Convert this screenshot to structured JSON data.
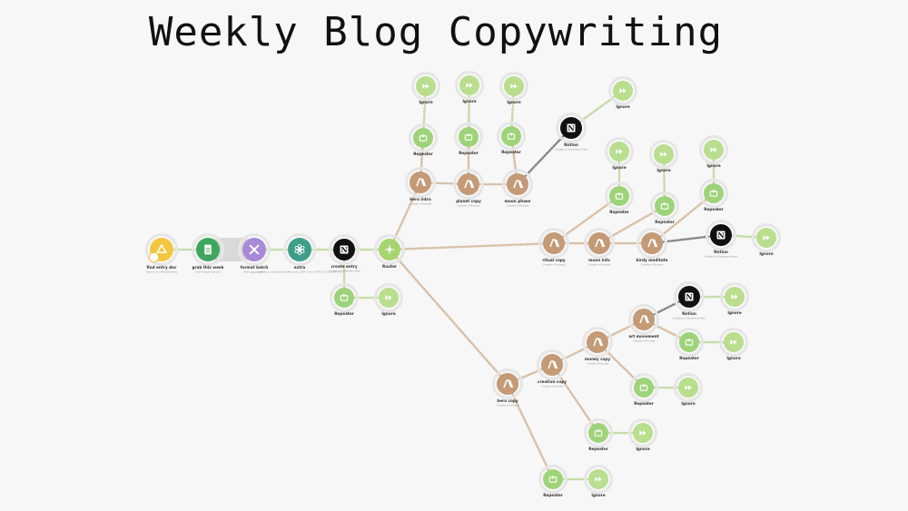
{
  "title": "Weekly Blog Copywriting",
  "colors": {
    "drive": "#f3c640",
    "sheets": "#3ea65d",
    "tools": "#a88ad8",
    "openai": "#3d9e8a",
    "notion": "#111111",
    "router": "#a8d46f",
    "claude": "#c49a77",
    "repeater": "#9fd37a",
    "ignore": "#b9de8e",
    "halo": "#e6e6e6",
    "dotted_link": "#c7dca8"
  },
  "nodes": [
    {
      "id": "find-entry",
      "label": "find entry doc",
      "sub": "Search for Files/Folders",
      "type": "drive"
    },
    {
      "id": "grab-week",
      "label": "grab this week",
      "sub": "Get Range Values",
      "type": "sheets"
    },
    {
      "id": "format-batch",
      "label": "format batch",
      "sub": "Text aggregator",
      "type": "tools"
    },
    {
      "id": "extra",
      "label": "extra",
      "sub": "Create a completion (Prompt) (GPT-3 and GPT-3.5 and GPT-4)",
      "type": "openai"
    },
    {
      "id": "create-entry",
      "label": "create entry",
      "sub": "Create a Database Item",
      "type": "notion"
    },
    {
      "id": "router",
      "label": "Router",
      "sub": "",
      "type": "router"
    },
    {
      "id": "repeater-a",
      "label": "Repeater",
      "sub": "",
      "type": "repeater"
    },
    {
      "id": "ignore-a",
      "label": "Ignore",
      "sub": "",
      "type": "ignore"
    },
    {
      "id": "hero-intro",
      "label": "hero intro",
      "sub": "Create a Prompt",
      "type": "claude"
    },
    {
      "id": "planet-copy",
      "label": "planet copy",
      "sub": "Create a Prompt",
      "type": "claude"
    },
    {
      "id": "moon-phase",
      "label": "moon phase",
      "sub": "Create a Prompt",
      "type": "claude"
    },
    {
      "id": "repeater-b1",
      "label": "Repeater",
      "sub": "",
      "type": "repeater"
    },
    {
      "id": "repeater-b2",
      "label": "Repeater",
      "sub": "",
      "type": "repeater"
    },
    {
      "id": "repeater-b3",
      "label": "Repeater",
      "sub": "",
      "type": "repeater"
    },
    {
      "id": "ignore-b1",
      "label": "Ignore",
      "sub": "",
      "type": "ignore"
    },
    {
      "id": "ignore-b2",
      "label": "Ignore",
      "sub": "",
      "type": "ignore"
    },
    {
      "id": "ignore-b3",
      "label": "Ignore",
      "sub": "",
      "type": "ignore"
    },
    {
      "id": "notion-b",
      "label": "Notion",
      "sub": "Update a Database Item",
      "type": "notion"
    },
    {
      "id": "ignore-b4",
      "label": "Ignore",
      "sub": "",
      "type": "ignore"
    },
    {
      "id": "ritual-copy",
      "label": "ritual copy",
      "sub": "Create a Prompt",
      "type": "claude"
    },
    {
      "id": "moon-info",
      "label": "moon info",
      "sub": "Create a Prompt",
      "type": "claude"
    },
    {
      "id": "birdy-meditate",
      "label": "birdy meditate",
      "sub": "Create a Prompt",
      "type": "claude"
    },
    {
      "id": "repeater-c1",
      "label": "Repeater",
      "sub": "",
      "type": "repeater"
    },
    {
      "id": "repeater-c2",
      "label": "Repeater",
      "sub": "",
      "type": "repeater"
    },
    {
      "id": "repeater-c3",
      "label": "Repeater",
      "sub": "",
      "type": "repeater"
    },
    {
      "id": "ignore-c1",
      "label": "Ignore",
      "sub": "",
      "type": "ignore"
    },
    {
      "id": "ignore-c2",
      "label": "Ignore",
      "sub": "",
      "type": "ignore"
    },
    {
      "id": "ignore-c3",
      "label": "Ignore",
      "sub": "",
      "type": "ignore"
    },
    {
      "id": "notion-c",
      "label": "Notion",
      "sub": "Update a Database Item",
      "type": "notion"
    },
    {
      "id": "ignore-c4",
      "label": "Ignore",
      "sub": "",
      "type": "ignore"
    },
    {
      "id": "hero-copy",
      "label": "hero copy",
      "sub": "Create a Prompt",
      "type": "claude"
    },
    {
      "id": "creation-copy",
      "label": "creation copy",
      "sub": "Create a Prompt",
      "type": "claude"
    },
    {
      "id": "money-copy",
      "label": "money copy",
      "sub": "Create a Prompt",
      "type": "claude"
    },
    {
      "id": "art-movement",
      "label": "art movement",
      "sub": "Create a Prompt",
      "type": "claude"
    },
    {
      "id": "notion-d",
      "label": "Notion",
      "sub": "Update a Database Item",
      "type": "notion"
    },
    {
      "id": "ignore-d0",
      "label": "Ignore",
      "sub": "",
      "type": "ignore"
    },
    {
      "id": "repeater-d1",
      "label": "Repeater",
      "sub": "",
      "type": "repeater"
    },
    {
      "id": "ignore-d1",
      "label": "Ignore",
      "sub": "",
      "type": "ignore"
    },
    {
      "id": "repeater-d2",
      "label": "Repeater",
      "sub": "",
      "type": "repeater"
    },
    {
      "id": "ignore-d2",
      "label": "Ignore",
      "sub": "",
      "type": "ignore"
    },
    {
      "id": "repeater-d3",
      "label": "Repeater",
      "sub": "",
      "type": "repeater"
    },
    {
      "id": "ignore-d3",
      "label": "Ignore",
      "sub": "",
      "type": "ignore"
    },
    {
      "id": "repeater-d4",
      "label": "Repeater",
      "sub": "",
      "type": "repeater"
    },
    {
      "id": "ignore-d4",
      "label": "Ignore",
      "sub": "",
      "type": "ignore"
    }
  ]
}
